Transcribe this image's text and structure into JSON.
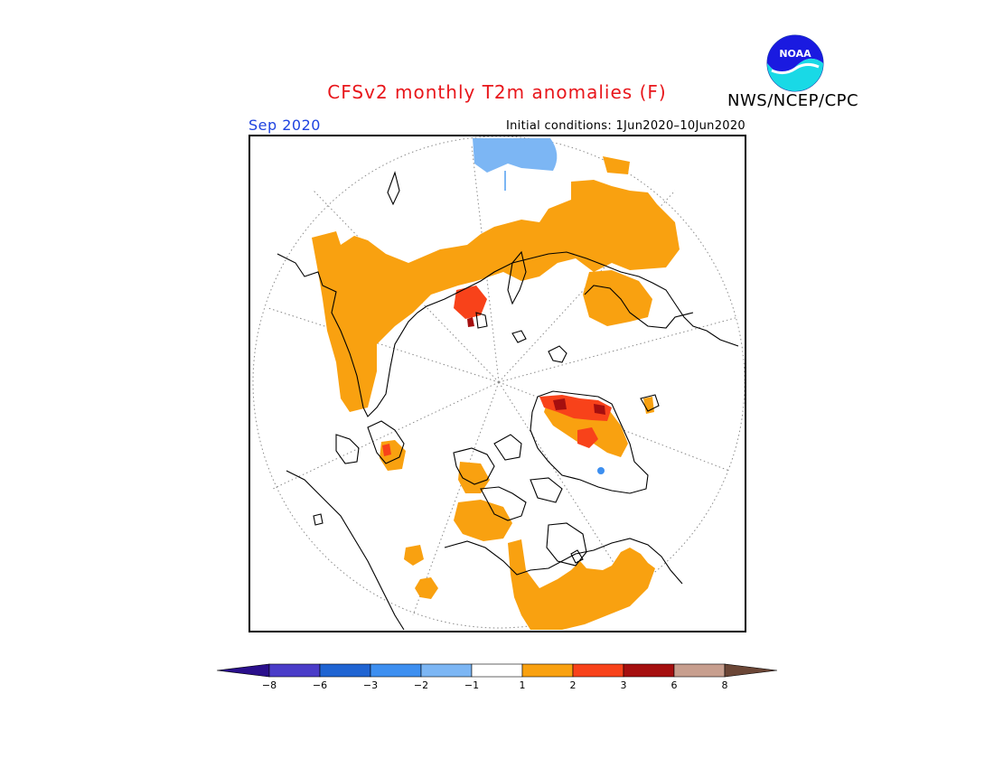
{
  "header": {
    "title": "CFSv2 monthly T2m anomalies (F)",
    "agency": "NWS/NCEP/CPC",
    "logo_text": "NOAA",
    "month": "Sep 2020",
    "initial_conditions": "Initial conditions: 1Jun2020–10Jun2020"
  },
  "map": {
    "projection": "north-polar-stereographic",
    "variable": "2m temperature anomaly",
    "units": "F"
  },
  "legend": {
    "ticks": [
      "−8",
      "−6",
      "−3",
      "−2",
      "−1",
      "1",
      "2",
      "3",
      "6",
      "8"
    ],
    "colors": {
      "lt_minus8": "#2a0f8c",
      "minus8_minus6": "#4a3cc8",
      "minus6_minus3": "#1f64d2",
      "minus3_minus2": "#3d8ff0",
      "minus2_minus1": "#7cb6f4",
      "minus1_1": "#ffffff",
      "1_2": "#f9a110",
      "2_3": "#f8421a",
      "3_6": "#a50f0f",
      "6_8": "#c79e8e",
      "gt_8": "#6b4636"
    }
  }
}
